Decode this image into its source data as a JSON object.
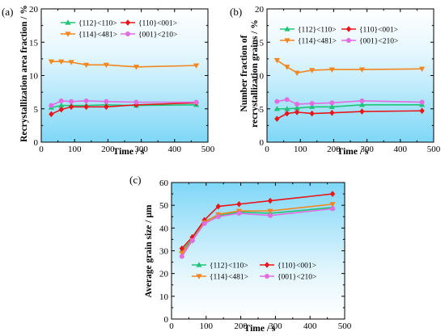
{
  "chart_data": [
    {
      "panel_label": "(a)",
      "type": "line",
      "xlabel": "Time / s",
      "ylabel": "Recrystallization area fraction / %",
      "xlim": [
        0,
        500
      ],
      "ylim": [
        0,
        20
      ],
      "xticks": [
        0,
        100,
        200,
        300,
        400,
        500
      ],
      "yticks": [
        0,
        5,
        10,
        15,
        20
      ],
      "grid": false,
      "background": "gradient white (top) to light blue (bottom)",
      "legend_placement": "top",
      "series": [
        {
          "name": "{112}<110>",
          "color": "#1fc476",
          "marker": "triangle-up",
          "x": [
            30,
            60,
            90,
            135,
            195,
            285,
            465
          ],
          "y": [
            5.2,
            5.5,
            5.5,
            5.5,
            5.6,
            5.5,
            5.6
          ]
        },
        {
          "name": "{110}<001>",
          "color": "#e8161b",
          "marker": "diamond",
          "x": [
            30,
            60,
            90,
            135,
            195,
            285,
            465
          ],
          "y": [
            4.2,
            4.9,
            5.3,
            5.3,
            5.3,
            5.6,
            5.9
          ]
        },
        {
          "name": "{114}<481>",
          "color": "#f2861f",
          "marker": "triangle-down",
          "x": [
            30,
            60,
            90,
            135,
            195,
            285,
            465
          ],
          "y": [
            12.1,
            12.1,
            12.0,
            11.6,
            11.6,
            11.3,
            11.5
          ]
        },
        {
          "name": "{001}<210>",
          "color": "#e26ce0",
          "marker": "circle",
          "x": [
            30,
            60,
            90,
            135,
            195,
            285,
            465
          ],
          "y": [
            5.5,
            6.2,
            6.1,
            6.2,
            6.1,
            6.0,
            6.0
          ]
        }
      ]
    },
    {
      "panel_label": "(b)",
      "type": "line",
      "xlabel": "Time / s",
      "ylabel": "Number fraction of recrystallization grains / %",
      "ylabel_lines": [
        "Number fraction of",
        "recrystallization grains / %"
      ],
      "xlim": [
        0,
        500
      ],
      "ylim": [
        0,
        20
      ],
      "xticks": [
        0,
        100,
        200,
        300,
        400,
        500
      ],
      "yticks": [
        0,
        5,
        10,
        15,
        20
      ],
      "grid": false,
      "background": "gradient white (top) to light blue (bottom)",
      "legend_placement": "top",
      "series": [
        {
          "name": "{112}<110>",
          "color": "#1fc476",
          "marker": "triangle-up",
          "x": [
            30,
            60,
            90,
            135,
            195,
            285,
            465
          ],
          "y": [
            5.0,
            5.0,
            5.1,
            5.3,
            5.3,
            5.6,
            5.6
          ]
        },
        {
          "name": "{110}<001>",
          "color": "#e8161b",
          "marker": "diamond",
          "x": [
            30,
            60,
            90,
            135,
            195,
            285,
            465
          ],
          "y": [
            3.5,
            4.3,
            4.5,
            4.3,
            4.4,
            4.6,
            4.7
          ]
        },
        {
          "name": "{114}<481>",
          "color": "#f2861f",
          "marker": "triangle-down",
          "x": [
            30,
            60,
            90,
            135,
            195,
            285,
            465
          ],
          "y": [
            12.3,
            11.3,
            10.4,
            10.8,
            10.9,
            10.9,
            11.0
          ]
        },
        {
          "name": "{001}<210>",
          "color": "#e26ce0",
          "marker": "circle",
          "x": [
            30,
            60,
            90,
            135,
            195,
            285,
            465
          ],
          "y": [
            6.1,
            6.4,
            5.7,
            5.8,
            5.9,
            6.2,
            6.0
          ]
        }
      ]
    },
    {
      "panel_label": "(c)",
      "type": "line",
      "xlabel": "Time / s",
      "ylabel": "Average grain size / μm",
      "xlim": [
        0,
        500
      ],
      "ylim": [
        0,
        60
      ],
      "xticks": [
        0,
        100,
        200,
        300,
        400,
        500
      ],
      "yticks": [
        0,
        10,
        20,
        30,
        40,
        50,
        60
      ],
      "grid": false,
      "background": "gradient light blue (top) to white (bottom)",
      "legend_placement": "bottom",
      "series": [
        {
          "name": "{112}<110>",
          "color": "#1fc476",
          "marker": "triangle-up",
          "x": [
            30,
            60,
            95,
            135,
            195,
            285,
            465
          ],
          "y": [
            30,
            35,
            43,
            45.5,
            47,
            46.5,
            49
          ]
        },
        {
          "name": "{110}<001>",
          "color": "#e8161b",
          "marker": "diamond",
          "x": [
            30,
            60,
            95,
            135,
            195,
            285,
            465
          ],
          "y": [
            31,
            36,
            43.5,
            49.5,
            50.5,
            52,
            55
          ]
        },
        {
          "name": "{114}<481>",
          "color": "#f2861f",
          "marker": "triangle-down",
          "x": [
            30,
            60,
            95,
            135,
            195,
            285,
            465
          ],
          "y": [
            29,
            34.5,
            42.5,
            46,
            47.5,
            47.5,
            50.5
          ]
        },
        {
          "name": "{001}<210>",
          "color": "#e26ce0",
          "marker": "circle",
          "x": [
            30,
            60,
            95,
            135,
            195,
            285,
            465
          ],
          "y": [
            27.5,
            34.5,
            42,
            45,
            46.5,
            45.5,
            48.5
          ]
        }
      ]
    }
  ]
}
